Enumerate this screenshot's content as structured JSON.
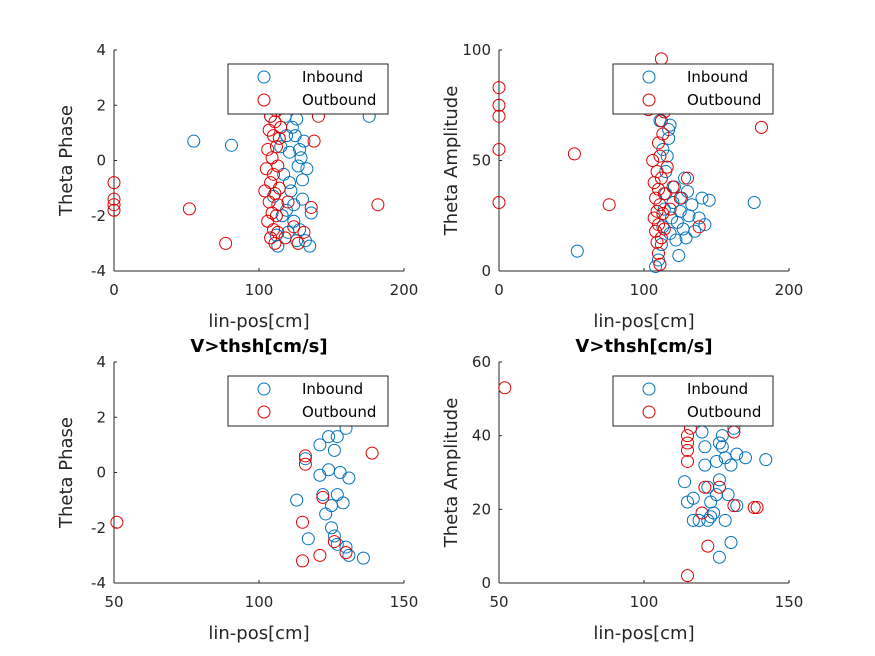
{
  "colors": {
    "inbound": "#0072BD",
    "outbound": "#D95319",
    "outbound_marker": "#E00000",
    "axis": "#262626"
  },
  "chart_data": [
    {
      "type": "scatter",
      "title": "",
      "xlabel": "lin-pos[cm]",
      "ylabel": "Theta Phase",
      "xlim": [
        0,
        200
      ],
      "ylim": [
        -4,
        4
      ],
      "xticks": [
        0,
        100,
        200
      ],
      "yticks": [
        -4,
        -2,
        0,
        2,
        4
      ],
      "legend": {
        "position": "top-right",
        "entries": [
          "Inbound",
          "Outbound"
        ]
      },
      "series": [
        {
          "name": "Inbound",
          "points": [
            [
              55,
              0.7
            ],
            [
              81,
              0.55
            ],
            [
              108,
              1.6
            ],
            [
              110,
              -1.3
            ],
            [
              112,
              -2.7
            ],
            [
              113,
              -3.1
            ],
            [
              115,
              0.5
            ],
            [
              117,
              -0.5
            ],
            [
              118,
              1.6
            ],
            [
              119,
              -1.8
            ],
            [
              120,
              -2.6
            ],
            [
              121,
              0.3
            ],
            [
              122,
              -1.1
            ],
            [
              123,
              1.2
            ],
            [
              124,
              -2.2
            ],
            [
              125,
              0.9
            ],
            [
              126,
              1.5
            ],
            [
              127,
              -0.2
            ],
            [
              128,
              -2.5
            ],
            [
              129,
              0.1
            ],
            [
              130,
              -1.4
            ],
            [
              131,
              0.7
            ],
            [
              132,
              -2.9
            ],
            [
              133,
              -0.3
            ],
            [
              135,
              -3.1
            ],
            [
              136,
              -1.9
            ],
            [
              176,
              1.6
            ],
            [
              116,
              -2.0
            ],
            [
              119,
              0.9
            ],
            [
              121,
              -0.8
            ],
            [
              124,
              -1.6
            ],
            [
              126,
              -2.9
            ],
            [
              128,
              0.4
            ],
            [
              130,
              -0.7
            ]
          ]
        },
        {
          "name": "Outbound",
          "points": [
            [
              0,
              -0.8
            ],
            [
              0,
              -1.4
            ],
            [
              0,
              -1.6
            ],
            [
              0,
              -1.8
            ],
            [
              52,
              -1.75
            ],
            [
              77,
              -3.0
            ],
            [
              104,
              -1.1
            ],
            [
              105,
              -0.3
            ],
            [
              106,
              0.4
            ],
            [
              106,
              -2.2
            ],
            [
              107,
              1.1
            ],
            [
              107,
              -1.5
            ],
            [
              108,
              -0.8
            ],
            [
              108,
              1.6
            ],
            [
              108,
              -2.8
            ],
            [
              109,
              0.1
            ],
            [
              109,
              -1.9
            ],
            [
              110,
              0.9
            ],
            [
              110,
              -2.5
            ],
            [
              110,
              -0.5
            ],
            [
              111,
              1.4
            ],
            [
              111,
              -1.2
            ],
            [
              111,
              -3.0
            ],
            [
              112,
              0.5
            ],
            [
              112,
              -2.0
            ],
            [
              112,
              1.8
            ],
            [
              113,
              -0.2
            ],
            [
              113,
              -1.6
            ],
            [
              113,
              -2.6
            ],
            [
              114,
              0.8
            ],
            [
              114,
              -1.0
            ],
            [
              115,
              1.2
            ],
            [
              118,
              -2.8
            ],
            [
              120,
              -1.5
            ],
            [
              124,
              -2.4
            ],
            [
              127,
              -3.0
            ],
            [
              131,
              -2.6
            ],
            [
              136,
              -1.7
            ],
            [
              138,
              0.7
            ],
            [
              141,
              1.6
            ],
            [
              182,
              -1.6
            ]
          ]
        }
      ]
    },
    {
      "type": "scatter",
      "title": "",
      "xlabel": "lin-pos[cm]",
      "ylabel": "Theta Amplitude",
      "xlim": [
        0,
        200
      ],
      "ylim": [
        0,
        100
      ],
      "xticks": [
        0,
        100,
        200
      ],
      "yticks": [
        0,
        50,
        100
      ],
      "legend": {
        "position": "top-right",
        "entries": [
          "Inbound",
          "Outbound"
        ]
      },
      "series": [
        {
          "name": "Inbound",
          "points": [
            [
              54,
              9
            ],
            [
              108,
              2
            ],
            [
              110,
              5
            ],
            [
              112,
              12
            ],
            [
              113,
              20
            ],
            [
              114,
              28
            ],
            [
              115,
              35
            ],
            [
              115,
              45
            ],
            [
              116,
              52
            ],
            [
              117,
              60
            ],
            [
              117,
              64
            ],
            [
              118,
              17
            ],
            [
              119,
              24
            ],
            [
              120,
              31
            ],
            [
              121,
              38
            ],
            [
              122,
              14
            ],
            [
              123,
              22
            ],
            [
              124,
              7
            ],
            [
              125,
              27
            ],
            [
              126,
              33
            ],
            [
              127,
              19
            ],
            [
              128,
              42
            ],
            [
              129,
              15
            ],
            [
              130,
              36
            ],
            [
              131,
              25
            ],
            [
              133,
              30
            ],
            [
              135,
              18
            ],
            [
              138,
              24
            ],
            [
              140,
              33
            ],
            [
              142,
              21
            ],
            [
              145,
              32
            ],
            [
              176,
              31
            ],
            [
              111,
              68
            ],
            [
              113,
              55
            ],
            [
              118,
              66
            ]
          ]
        },
        {
          "name": "Outbound",
          "points": [
            [
              0,
              83
            ],
            [
              0,
              75
            ],
            [
              0,
              70
            ],
            [
              0,
              55
            ],
            [
              0,
              31
            ],
            [
              52,
              53
            ],
            [
              76,
              30
            ],
            [
              103,
              73
            ],
            [
              106,
              50
            ],
            [
              107,
              24
            ],
            [
              107,
              40
            ],
            [
              108,
              18
            ],
            [
              108,
              33
            ],
            [
              109,
              13
            ],
            [
              109,
              45
            ],
            [
              109,
              27
            ],
            [
              110,
              8
            ],
            [
              110,
              37
            ],
            [
              110,
              21
            ],
            [
              111,
              3
            ],
            [
              111,
              30
            ],
            [
              111,
              52
            ],
            [
              112,
              96
            ],
            [
              112,
              15
            ],
            [
              112,
              42
            ],
            [
              113,
              26
            ],
            [
              113,
              62
            ],
            [
              114,
              35
            ],
            [
              114,
              19
            ],
            [
              116,
              47
            ],
            [
              118,
              28
            ],
            [
              120,
              38
            ],
            [
              125,
              33
            ],
            [
              130,
              42
            ],
            [
              138,
              20
            ],
            [
              181,
              65
            ],
            [
              110,
              58
            ],
            [
              112,
              68
            ],
            [
              114,
              72
            ]
          ]
        }
      ]
    },
    {
      "type": "scatter",
      "title": "V>thsh[cm/s]",
      "xlabel": "lin-pos[cm]",
      "ylabel": "Theta Phase",
      "xlim": [
        50,
        150
      ],
      "ylim": [
        -4,
        4
      ],
      "xticks": [
        50,
        100,
        150
      ],
      "yticks": [
        -4,
        -2,
        0,
        2,
        4
      ],
      "legend": {
        "position": "top-right",
        "entries": [
          "Inbound",
          "Outbound"
        ]
      },
      "series": [
        {
          "name": "Inbound",
          "points": [
            [
              113,
              -1.0
            ],
            [
              116,
              0.5
            ],
            [
              117,
              -2.4
            ],
            [
              121,
              1.0
            ],
            [
              121,
              -0.1
            ],
            [
              122,
              -0.8
            ],
            [
              123,
              -1.5
            ],
            [
              124,
              1.3
            ],
            [
              124,
              0.1
            ],
            [
              125,
              -1.2
            ],
            [
              125,
              -2.0
            ],
            [
              126,
              -2.3
            ],
            [
              126,
              0.8
            ],
            [
              127,
              -0.8
            ],
            [
              127,
              -2.6
            ],
            [
              127,
              1.3
            ],
            [
              128,
              0.0
            ],
            [
              129,
              -1.1
            ],
            [
              130,
              1.6
            ],
            [
              130,
              -2.7
            ],
            [
              131,
              -0.2
            ],
            [
              131,
              -3.0
            ],
            [
              136,
              -3.1
            ]
          ]
        },
        {
          "name": "Outbound",
          "points": [
            [
              51,
              -1.8
            ],
            [
              115,
              -3.2
            ],
            [
              115,
              -1.8
            ],
            [
              116,
              0.3
            ],
            [
              116,
              0.6
            ],
            [
              121,
              -3.0
            ],
            [
              122,
              -0.9
            ],
            [
              126,
              -2.5
            ],
            [
              130,
              -2.9
            ],
            [
              139,
              0.7
            ]
          ]
        }
      ]
    },
    {
      "type": "scatter",
      "title": "V>thsh[cm/s]",
      "xlabel": "lin-pos[cm]",
      "ylabel": "Theta Amplitude",
      "xlim": [
        50,
        150
      ],
      "ylim": [
        0,
        60
      ],
      "xticks": [
        50,
        100,
        150
      ],
      "yticks": [
        0,
        20,
        40,
        60
      ],
      "legend": {
        "position": "top-right",
        "entries": [
          "Inbound",
          "Outbound"
        ]
      },
      "series": [
        {
          "name": "Inbound",
          "points": [
            [
              114,
              27.5
            ],
            [
              115,
              22
            ],
            [
              117,
              23
            ],
            [
              117,
              17
            ],
            [
              119,
              17
            ],
            [
              120,
              41
            ],
            [
              121,
              37
            ],
            [
              121,
              32
            ],
            [
              122,
              26
            ],
            [
              122,
              17
            ],
            [
              123,
              22
            ],
            [
              123,
              18
            ],
            [
              124,
              19
            ],
            [
              125,
              33
            ],
            [
              125,
              24
            ],
            [
              126,
              7
            ],
            [
              126,
              38
            ],
            [
              126,
              28
            ],
            [
              127,
              37
            ],
            [
              127,
              40
            ],
            [
              128,
              34
            ],
            [
              128,
              17
            ],
            [
              129,
              24
            ],
            [
              130,
              11
            ],
            [
              130,
              32
            ],
            [
              131,
              42
            ],
            [
              132,
              21
            ],
            [
              132,
              35
            ],
            [
              135,
              34
            ],
            [
              142,
              33.5
            ]
          ]
        },
        {
          "name": "Outbound",
          "points": [
            [
              52,
              53
            ],
            [
              115,
              2
            ],
            [
              115,
              33
            ],
            [
              115,
              36
            ],
            [
              115,
              38
            ],
            [
              115,
              40
            ],
            [
              116,
              42
            ],
            [
              120,
              19
            ],
            [
              121,
              26
            ],
            [
              122,
              10
            ],
            [
              126,
              26
            ],
            [
              131,
              41
            ],
            [
              131,
              21
            ],
            [
              138,
              20.5
            ],
            [
              139,
              20.5
            ]
          ]
        }
      ]
    }
  ]
}
